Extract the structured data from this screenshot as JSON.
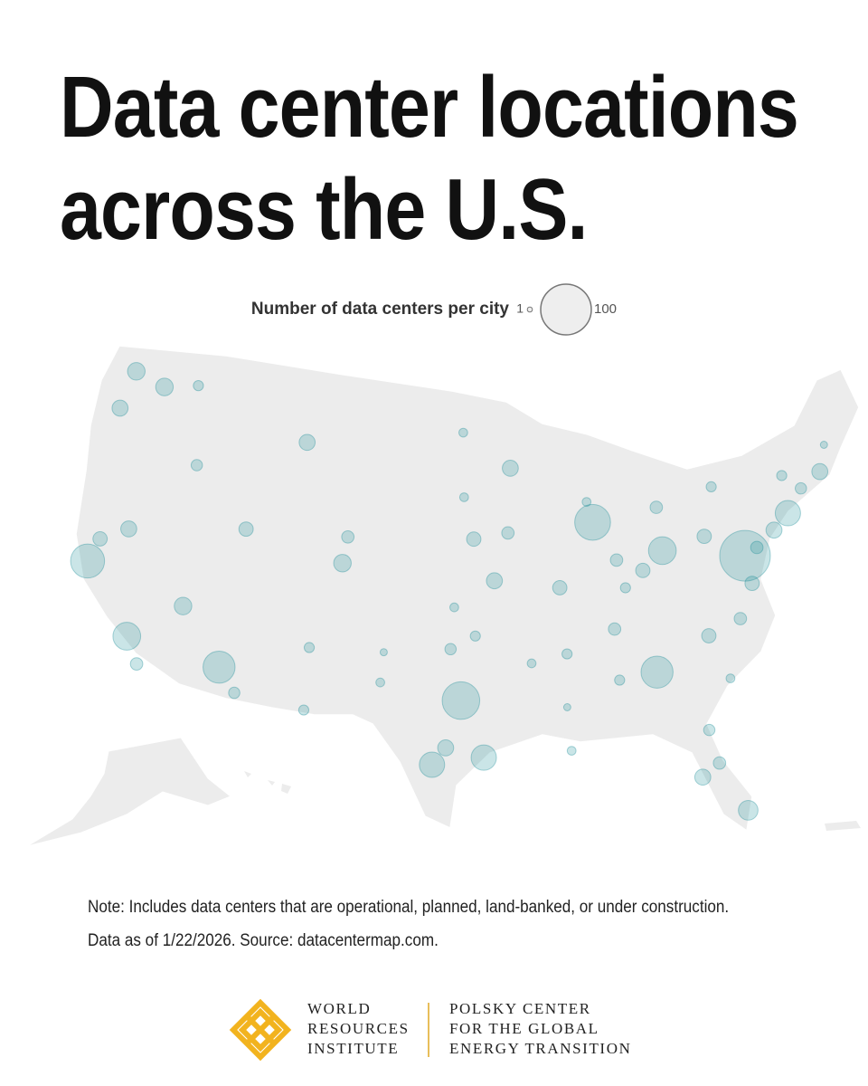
{
  "chart_data": {
    "type": "bubble-map",
    "title": "Data center locations across the U.S.",
    "size_legend": {
      "title": "Number of data centers per city",
      "values": [
        1,
        100
      ]
    },
    "color": "#0e8793",
    "lon": [
      -77.5,
      -96.8,
      -112.1,
      -87.6,
      -84.4,
      -121.9,
      -118.2,
      -83.0,
      -95.4,
      -98.5,
      -97.7,
      -74.0,
      -122.3,
      -122.7,
      -119.9,
      -111.9,
      -105.0,
      -94.6,
      -96.0,
      -93.3,
      -90.2,
      -86.2,
      -84.5,
      -86.8,
      -80.8,
      -78.6,
      -77.4,
      -75.2,
      -71.1,
      -80.0,
      -83.0,
      -80.2,
      -82.5,
      -81.4,
      -81.7,
      -115.1,
      -119.8,
      -121.5,
      -117.2,
      -110.9,
      -106.6,
      -106.5,
      -97.5,
      -95.9,
      -90.0,
      -90.1,
      -86.8,
      -85.8,
      -87.9,
      -93.6,
      -116.2,
      -117.4,
      -108.5,
      -104.8,
      -96.8,
      -96.7,
      -78.9,
      -73.8,
      -72.7,
      -76.6,
      -92.3,
      -90.2,
      -97.3,
      -101.9,
      -101.8,
      -70.3,
      -79.9
    ],
    "lat": [
      39.0,
      32.8,
      33.4,
      41.9,
      33.7,
      37.3,
      34.0,
      40.0,
      29.8,
      29.4,
      30.3,
      40.7,
      47.6,
      45.5,
      47.2,
      40.8,
      39.7,
      39.1,
      41.3,
      45.0,
      38.6,
      39.8,
      39.1,
      36.2,
      35.2,
      35.8,
      37.5,
      40.0,
      42.4,
      40.4,
      42.3,
      25.8,
      27.9,
      28.5,
      30.3,
      36.2,
      39.5,
      38.6,
      32.7,
      32.2,
      35.1,
      31.8,
      35.5,
      36.2,
      35.1,
      30.0,
      33.5,
      38.3,
      43.0,
      41.6,
      43.6,
      47.7,
      45.8,
      41.1,
      46.9,
      43.5,
      42.9,
      42.7,
      41.8,
      39.3,
      34.7,
      32.3,
      37.7,
      33.6,
      35.2,
      43.7,
      32.8
    ],
    "values": [
      100,
      55,
      40,
      50,
      40,
      45,
      30,
      30,
      25,
      25,
      10,
      25,
      12,
      10,
      12,
      8,
      12,
      10,
      8,
      10,
      8,
      6,
      8,
      6,
      8,
      6,
      8,
      10,
      10,
      8,
      6,
      15,
      10,
      6,
      5,
      12,
      10,
      8,
      6,
      5,
      4,
      4,
      5,
      4,
      4,
      3,
      4,
      4,
      3,
      6,
      5,
      4,
      10,
      6,
      3,
      3,
      4,
      4,
      5,
      6,
      3,
      2,
      3,
      3,
      2,
      2,
      3
    ]
  },
  "note": [
    "Note: Includes data centers that are operational, planned, land-banked, or under construction.",
    "Data as of 1/22/2026. Source: datacentermap.com."
  ],
  "logos": [
    [
      "WORLD",
      "RESOURCES",
      "INSTITUTE"
    ],
    [
      "POLSKY CENTER",
      "FOR THE GLOBAL",
      "ENERGY TRANSITION"
    ]
  ]
}
